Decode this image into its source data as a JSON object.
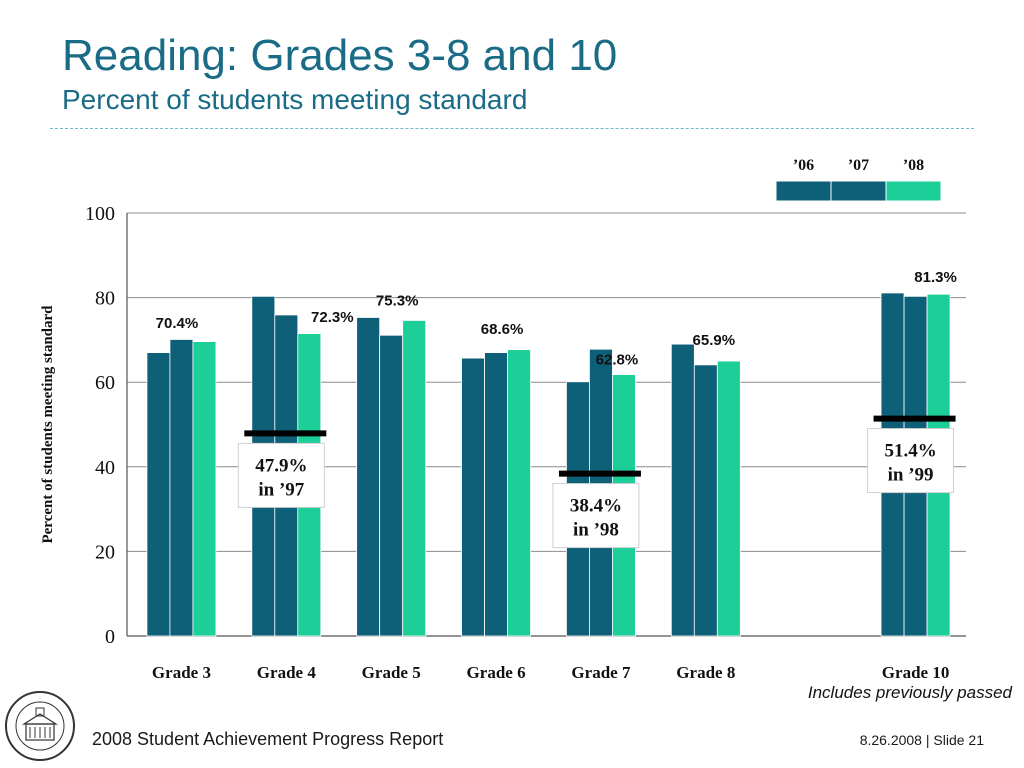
{
  "slide": {
    "title": "Reading: Grades 3-8 and 10",
    "subtitle": "Percent of students meeting standard",
    "footer_left": "2008 Student Achievement Progress Report",
    "footer_date": "8.26.2008",
    "footer_separator": "|",
    "footer_slide": "Slide 21"
  },
  "colors": {
    "title": "#1a6b86",
    "bar_dark": "#0e5f78",
    "bar_light": "#1ccf98",
    "baseline_marker": "#000000"
  },
  "chart_data": {
    "type": "bar",
    "ylabel": "Percent of students meeting standard",
    "ylim": [
      0,
      100
    ],
    "yticks": [
      0,
      20,
      40,
      60,
      80,
      100
    ],
    "grid": true,
    "legend_position": "top-right",
    "legend": [
      "’06",
      "’07",
      "’08"
    ],
    "categories": [
      "Grade 3",
      "Grade 4",
      "Grade 5",
      "Grade 6",
      "Grade 7",
      "Grade 8",
      "",
      "Grade 10"
    ],
    "series": [
      {
        "name": "’06",
        "color": "#0e5f78",
        "values": [
          67.0,
          80.3,
          75.3,
          65.7,
          60.1,
          69.0,
          null,
          81.1
        ]
      },
      {
        "name": "’07",
        "color": "#0e5f78",
        "values": [
          70.1,
          75.9,
          71.1,
          67.0,
          67.8,
          64.1,
          null,
          80.3
        ]
      },
      {
        "name": "’08",
        "color": "#1ccf98",
        "values": [
          69.6,
          71.5,
          74.6,
          67.7,
          61.8,
          65.0,
          null,
          80.8
        ]
      }
    ],
    "value_labels": [
      {
        "category_index": 0,
        "text": "70.4%",
        "value": 70.4
      },
      {
        "category_index": 1,
        "text": "72.3%",
        "value": 72.3
      },
      {
        "category_index": 2,
        "text": "75.3%",
        "value": 75.3
      },
      {
        "category_index": 3,
        "text": "68.6%",
        "value": 68.6
      },
      {
        "category_index": 4,
        "text": "62.8%",
        "value": 62.8
      },
      {
        "category_index": 5,
        "text": "65.9%",
        "value": 65.9
      },
      {
        "category_index": 7,
        "text": "81.3%",
        "value": 81.3
      }
    ],
    "baselines": [
      {
        "category_index": 1,
        "value": 47.9,
        "line1": "47.9%",
        "line2": "in ’97"
      },
      {
        "category_index": 4,
        "value": 38.4,
        "line1": "38.4%",
        "line2": "in ’98"
      },
      {
        "category_index": 7,
        "value": 51.4,
        "line1": "51.4%",
        "line2": "in ’99"
      }
    ],
    "annotations": [
      "Includes previously passed"
    ]
  }
}
